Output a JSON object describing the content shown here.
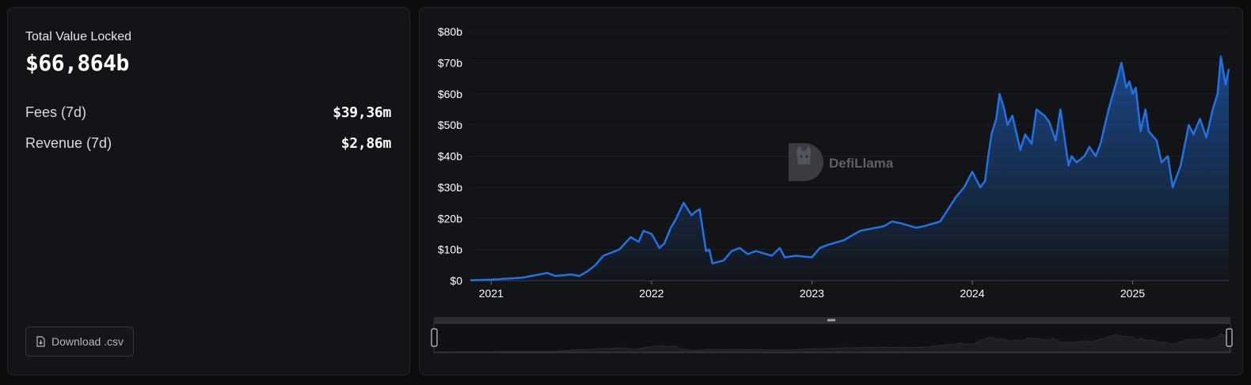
{
  "stats": {
    "tvl_label": "Total Value Locked",
    "tvl_value": "$66,864b",
    "rows": [
      {
        "label": "Fees (7d)",
        "value": "$39,36m"
      },
      {
        "label": "Revenue (7d)",
        "value": "$2,86m"
      }
    ],
    "download_label": "Download .csv"
  },
  "watermark": "DefiLlama",
  "colors": {
    "line": "#2172e5",
    "background": "#131417"
  },
  "chart_data": {
    "type": "area",
    "ylim": [
      0,
      80
    ],
    "y_ticks": [
      "$0",
      "$10b",
      "$20b",
      "$30b",
      "$40b",
      "$50b",
      "$60b",
      "$70b",
      "$80b"
    ],
    "x_ticks": [
      "2021",
      "2022",
      "2023",
      "2024",
      "2025"
    ],
    "x_range": [
      2020.87,
      2025.6
    ],
    "series": [
      {
        "values_unit": "billions USD",
        "x": [
          2020.87,
          2021.0,
          2021.2,
          2021.35,
          2021.4,
          2021.5,
          2021.55,
          2021.6,
          2021.65,
          2021.7,
          2021.8,
          2021.87,
          2021.92,
          2021.95,
          2022.0,
          2022.05,
          2022.08,
          2022.12,
          2022.15,
          2022.2,
          2022.25,
          2022.27,
          2022.3,
          2022.34,
          2022.36,
          2022.38,
          2022.45,
          2022.5,
          2022.55,
          2022.6,
          2022.65,
          2022.75,
          2022.8,
          2022.83,
          2022.9,
          2023.0,
          2023.05,
          2023.1,
          2023.2,
          2023.3,
          2023.4,
          2023.45,
          2023.5,
          2023.55,
          2023.65,
          2023.7,
          2023.8,
          2023.85,
          2023.9,
          2023.95,
          2024.0,
          2024.05,
          2024.08,
          2024.1,
          2024.12,
          2024.15,
          2024.17,
          2024.2,
          2024.22,
          2024.25,
          2024.3,
          2024.33,
          2024.37,
          2024.4,
          2024.45,
          2024.48,
          2024.52,
          2024.55,
          2024.6,
          2024.62,
          2024.65,
          2024.7,
          2024.73,
          2024.77,
          2024.8,
          2024.85,
          2024.9,
          2024.93,
          2024.96,
          2024.98,
          2025.0,
          2025.02,
          2025.05,
          2025.08,
          2025.1,
          2025.15,
          2025.18,
          2025.22,
          2025.25,
          2025.3,
          2025.35,
          2025.38,
          2025.42,
          2025.46,
          2025.5,
          2025.53,
          2025.55,
          2025.57,
          2025.58,
          2025.6
        ],
        "values": [
          0.1,
          0.3,
          1.0,
          2.5,
          1.5,
          2.0,
          1.5,
          3.0,
          5.0,
          8.0,
          10.0,
          14.0,
          12.5,
          16.0,
          15.0,
          10.5,
          12.0,
          17.0,
          19.5,
          25.0,
          21.0,
          22.0,
          23.0,
          9.5,
          10.0,
          5.5,
          6.5,
          9.5,
          10.5,
          8.5,
          9.5,
          8.0,
          10.5,
          7.5,
          8.0,
          7.5,
          10.5,
          11.5,
          13.0,
          16.0,
          17.0,
          17.5,
          19.0,
          18.5,
          17.0,
          17.5,
          19.0,
          23.0,
          27.0,
          30.0,
          35.0,
          30.0,
          32.0,
          40.0,
          47.0,
          52.0,
          60.0,
          55.0,
          50.0,
          53.0,
          42.0,
          47.0,
          44.0,
          55.0,
          53.0,
          51.0,
          45.0,
          55.0,
          37.0,
          40.0,
          38.0,
          40.0,
          43.0,
          40.0,
          44.0,
          55.0,
          64.0,
          70.0,
          62.0,
          64.0,
          60.0,
          62.0,
          48.0,
          55.0,
          48.0,
          45.0,
          38.0,
          40.0,
          30.0,
          37.0,
          50.0,
          47.0,
          52.0,
          46.0,
          55.0,
          60.0,
          72.0,
          66.0,
          63.0,
          68.0
        ]
      }
    ],
    "grid": true,
    "brush": true
  }
}
